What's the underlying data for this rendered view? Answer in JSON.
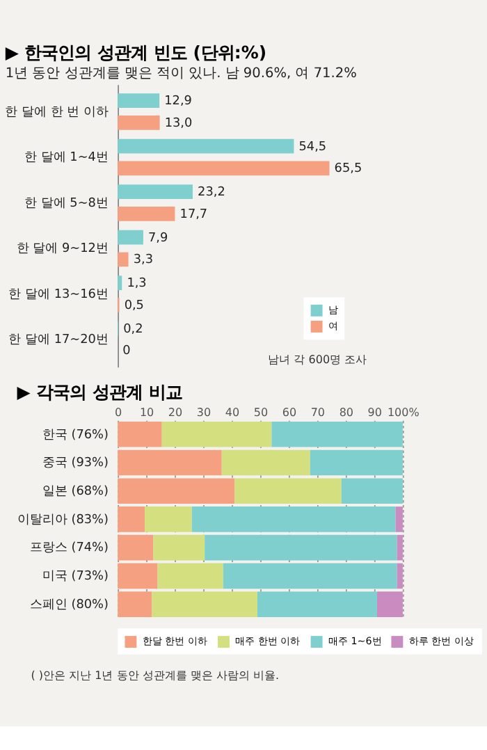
{
  "chart_data": [
    {
      "type": "bar",
      "orientation": "horizontal",
      "title": "▶ 한국인의 성관계 빈도 (단위:%)",
      "subtitle": "1년 동안 성관계를 맺은 적이 있나. 남 90.6%, 여 71.2%",
      "categories": [
        "한 달에 한 번 이하",
        "한 달에 1~4번",
        "한 달에 5~8번",
        "한 달에 9~12번",
        "한 달에 13~16번",
        "한 달에 17~20번"
      ],
      "series": [
        {
          "name": "남",
          "color": "#7fcfcf",
          "values": [
            12.9,
            54.5,
            23.2,
            7.9,
            1.3,
            0.2
          ],
          "value_labels": [
            "12,9",
            "54,5",
            "23,2",
            "7,9",
            "1,3",
            "0,2"
          ]
        },
        {
          "name": "여",
          "color": "#f5a080",
          "values": [
            13.0,
            65.5,
            17.7,
            3.3,
            0.5,
            0
          ],
          "value_labels": [
            "13,0",
            "65,5",
            "17,7",
            "3,3",
            "0,5",
            "0"
          ]
        }
      ],
      "legend": "bottom right",
      "tick_labels": "y",
      "annotations": [
        "남녀 각 600명 조사"
      ]
    },
    {
      "type": "bar",
      "orientation": "horizontal",
      "stacked": true,
      "title": "▶ 각국의 성관계 비교",
      "categories": [
        "한국 (76%)",
        "중국 (93%)",
        "일본 (68%)",
        "이탈리아 (83%)",
        "프랑스 (74%)",
        "미국 (73%)",
        "스페인 (80%)"
      ],
      "series": [
        {
          "name": "한달 한번 이하",
          "color": "#f5a080",
          "values": [
            15.5,
            36.5,
            41,
            9.5,
            12.5,
            14,
            12
          ]
        },
        {
          "name": "매주 한번 이하",
          "color": "#d4e07f",
          "values": [
            38.5,
            31,
            37.5,
            16.5,
            18,
            23,
            37
          ]
        },
        {
          "name": "매주 1~6번",
          "color": "#7fcfcf",
          "values": [
            46,
            32.5,
            21.5,
            71.5,
            67.5,
            61,
            42
          ]
        },
        {
          "name": "하루 한번 이상",
          "color": "#c98bc0",
          "values": [
            0,
            0,
            0,
            2.5,
            2,
            2,
            9
          ]
        }
      ],
      "xlim": [
        0,
        100
      ],
      "xticks": [
        0,
        10,
        20,
        30,
        40,
        50,
        60,
        70,
        80,
        90,
        {
          "value": 100,
          "label": "100%"
        }
      ],
      "grid": "x",
      "legend": "bottom",
      "annotations": [
        "( )안은 지난 1년 동안 성관계를 맺은 사람의 비율."
      ]
    }
  ]
}
